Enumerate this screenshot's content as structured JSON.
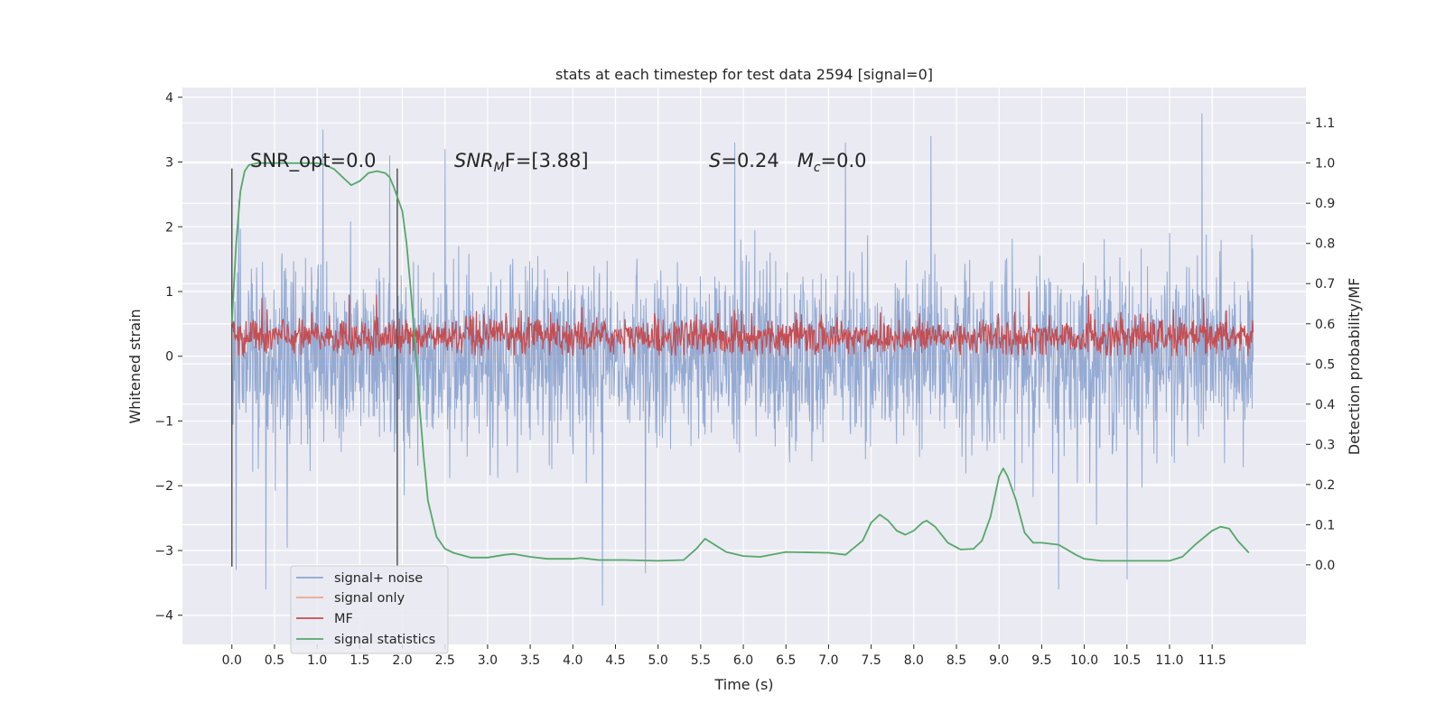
{
  "chart_data": {
    "type": "line",
    "title": "stats at each timestep for test data 2594 [signal=0]",
    "xlabel": "Time (s)",
    "ylabel": "Whitened strain",
    "ylabel_right": "Detection probability/MF",
    "xlim": [
      -0.58,
      12.6
    ],
    "ylim": [
      -4.45,
      4.15
    ],
    "ylim_right": [
      -0.198,
      1.188
    ],
    "xticks": [
      0.0,
      0.5,
      1.0,
      1.5,
      2.0,
      2.5,
      3.0,
      3.5,
      4.0,
      4.5,
      5.0,
      5.5,
      6.0,
      6.5,
      7.0,
      7.5,
      8.0,
      8.5,
      9.0,
      9.5,
      10.0,
      10.5,
      11.0,
      11.5
    ],
    "xtick_labels": [
      "0.0",
      "0.5",
      "1.0",
      "1.5",
      "2.0",
      "2.5",
      "3.0",
      "3.5",
      "4.0",
      "4.5",
      "5.0",
      "5.5",
      "6.0",
      "6.5",
      "7.0",
      "7.5",
      "8.0",
      "8.5",
      "9.0",
      "9.5",
      "10.0",
      "10.5",
      "11.0",
      "11.5"
    ],
    "yticks": [
      -4,
      -3,
      -2,
      -1,
      0,
      1,
      2,
      3,
      4
    ],
    "ytick_labels": [
      "−4",
      "−3",
      "−2",
      "−1",
      "0",
      "1",
      "2",
      "3",
      "4"
    ],
    "yticks_right": [
      0.0,
      0.1,
      0.2,
      0.3,
      0.4,
      0.5,
      0.6,
      0.7,
      0.8,
      0.9,
      1.0,
      1.1
    ],
    "ytick_labels_right": [
      "0.0",
      "0.1",
      "0.2",
      "0.3",
      "0.4",
      "0.5",
      "0.6",
      "0.7",
      "0.8",
      "0.9",
      "1.0",
      "1.1"
    ],
    "grid": true,
    "legend_position": "lower-left",
    "colors": {
      "noise": "#8fa6d1",
      "signal_only": "#e8a98a",
      "mf": "#c44e52",
      "stat": "#55a868",
      "background": "#eaeaf2",
      "grid": "#ffffff"
    },
    "series": [
      {
        "name": "signal+ noise",
        "axis": "left",
        "x_range": [
          0.0,
          11.98
        ],
        "envelope_p99": 1.8,
        "envelope_extremes": [
          [
            0.05,
            -3.3
          ],
          [
            0.4,
            -3.6
          ],
          [
            1.07,
            3.5
          ],
          [
            1.85,
            3.1
          ],
          [
            2.5,
            3.2
          ],
          [
            4.35,
            -3.85
          ],
          [
            4.85,
            -3.35
          ],
          [
            5.9,
            3.3
          ],
          [
            7.2,
            3.3
          ],
          [
            8.2,
            3.4
          ],
          [
            9.7,
            -3.6
          ],
          [
            10.5,
            -3.45
          ],
          [
            11.38,
            3.75
          ]
        ]
      },
      {
        "name": "signal only",
        "axis": "left",
        "x": [
          0.0,
          11.98
        ],
        "y": [
          0.0,
          0.0
        ]
      },
      {
        "name": "MF",
        "axis": "left",
        "x_range": [
          0.0,
          11.98
        ],
        "baseline": 0.3,
        "spread": 0.35,
        "peaks": [
          [
            0.35,
            0.9
          ],
          [
            1.38,
            0.95
          ],
          [
            1.7,
            0.95
          ],
          [
            9.35,
            1.0
          ],
          [
            10.05,
            0.95
          ],
          [
            11.4,
            0.9
          ]
        ]
      },
      {
        "name": "signal statistics",
        "axis": "right",
        "x": [
          0.0,
          0.05,
          0.1,
          0.15,
          0.2,
          0.3,
          0.5,
          0.8,
          1.0,
          1.1,
          1.2,
          1.3,
          1.4,
          1.5,
          1.6,
          1.7,
          1.8,
          1.85,
          1.9,
          2.0,
          2.05,
          2.1,
          2.15,
          2.2,
          2.25,
          2.3,
          2.4,
          2.5,
          2.6,
          2.8,
          3.0,
          3.2,
          3.3,
          3.5,
          3.7,
          4.0,
          4.1,
          4.3,
          4.6,
          5.0,
          5.3,
          5.45,
          5.55,
          5.7,
          5.8,
          6.0,
          6.2,
          6.5,
          7.0,
          7.2,
          7.4,
          7.5,
          7.6,
          7.7,
          7.8,
          7.9,
          8.0,
          8.1,
          8.15,
          8.25,
          8.4,
          8.55,
          8.7,
          8.8,
          8.9,
          9.0,
          9.05,
          9.1,
          9.2,
          9.3,
          9.4,
          9.5,
          9.7,
          9.9,
          10.0,
          10.2,
          10.5,
          10.8,
          11.0,
          11.15,
          11.3,
          11.5,
          11.6,
          11.7,
          11.8,
          11.93
        ],
        "y": [
          0.6,
          0.8,
          0.93,
          0.98,
          0.995,
          1.0,
          1.0,
          1.0,
          1.0,
          0.995,
          0.985,
          0.965,
          0.945,
          0.955,
          0.975,
          0.98,
          0.975,
          0.965,
          0.94,
          0.88,
          0.8,
          0.68,
          0.54,
          0.4,
          0.27,
          0.16,
          0.07,
          0.04,
          0.03,
          0.018,
          0.018,
          0.025,
          0.027,
          0.02,
          0.015,
          0.015,
          0.017,
          0.012,
          0.012,
          0.01,
          0.012,
          0.04,
          0.065,
          0.045,
          0.032,
          0.022,
          0.02,
          0.032,
          0.03,
          0.025,
          0.06,
          0.105,
          0.125,
          0.11,
          0.085,
          0.075,
          0.085,
          0.105,
          0.11,
          0.095,
          0.055,
          0.038,
          0.04,
          0.06,
          0.12,
          0.22,
          0.24,
          0.22,
          0.16,
          0.08,
          0.055,
          0.055,
          0.05,
          0.025,
          0.015,
          0.01,
          0.01,
          0.01,
          0.01,
          0.02,
          0.05,
          0.085,
          0.095,
          0.09,
          0.06,
          0.03
        ]
      }
    ],
    "vlines": [
      {
        "x": 0.0,
        "y": [
          -3.25,
          2.9
        ]
      },
      {
        "x": 1.94,
        "y": [
          -3.25,
          2.9
        ]
      }
    ],
    "annotations": [
      {
        "id": "snr-opt",
        "text": "SNR_opt=0.0",
        "x": 0.2,
        "y": 3.0
      },
      {
        "id": "snr-mf",
        "text": "SNR",
        "sub": "M",
        "rest": "F=[3.88]",
        "italic_first": true,
        "x": 2.6,
        "y": 3.0
      },
      {
        "id": "stats",
        "s_text": "S",
        "s_rest": "=0.24",
        "m_text": "M",
        "m_sub": "c",
        "m_rest": "=0.0",
        "x": 5.6,
        "y": 3.0
      }
    ]
  }
}
